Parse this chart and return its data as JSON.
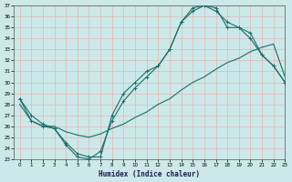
{
  "xlabel": "Humidex (Indice chaleur)",
  "bg_color": "#cce8e8",
  "line_color": "#1a6e6a",
  "grid_color": "#e0b8b8",
  "ylim": [
    23,
    37
  ],
  "xlim": [
    -0.5,
    23
  ],
  "yticks": [
    23,
    24,
    25,
    26,
    27,
    28,
    29,
    30,
    31,
    32,
    33,
    34,
    35,
    36,
    37
  ],
  "xticks": [
    0,
    1,
    2,
    3,
    4,
    5,
    6,
    7,
    8,
    9,
    10,
    11,
    12,
    13,
    14,
    15,
    16,
    17,
    18,
    19,
    20,
    21,
    22,
    23
  ],
  "line1_x": [
    0,
    1,
    2,
    3,
    4,
    5,
    6,
    7,
    8,
    9,
    10,
    11,
    12,
    13,
    14,
    15,
    16,
    17,
    18,
    19,
    20,
    21,
    22,
    23
  ],
  "line1_y": [
    28.5,
    27.0,
    26.2,
    25.8,
    24.3,
    23.2,
    23.0,
    23.7,
    26.5,
    28.3,
    29.5,
    30.5,
    31.5,
    33.0,
    35.5,
    36.5,
    37.0,
    36.5,
    35.5,
    35.0,
    34.0,
    32.5,
    31.5,
    30.0
  ],
  "line2_x": [
    0,
    1,
    2,
    3,
    4,
    5,
    6,
    7,
    8,
    9,
    10,
    11,
    12,
    13,
    14,
    15,
    16,
    17,
    18,
    19,
    20,
    21,
    22,
    23
  ],
  "line2_y": [
    28.5,
    26.5,
    26.0,
    25.8,
    24.5,
    23.5,
    23.2,
    23.2,
    27.0,
    29.0,
    30.0,
    31.0,
    31.5,
    33.0,
    35.5,
    36.8,
    37.0,
    36.8,
    35.0,
    35.0,
    34.5,
    32.5,
    31.5,
    30.0
  ],
  "line3_x": [
    0,
    1,
    2,
    3,
    4,
    5,
    6,
    7,
    8,
    9,
    10,
    11,
    12,
    13,
    14,
    15,
    16,
    17,
    18,
    19,
    20,
    21,
    22,
    23
  ],
  "line3_y": [
    28.0,
    26.5,
    26.0,
    26.0,
    25.5,
    25.2,
    25.0,
    25.3,
    25.8,
    26.2,
    26.8,
    27.3,
    28.0,
    28.5,
    29.3,
    30.0,
    30.5,
    31.2,
    31.8,
    32.2,
    32.8,
    33.2,
    33.5,
    30.5
  ]
}
